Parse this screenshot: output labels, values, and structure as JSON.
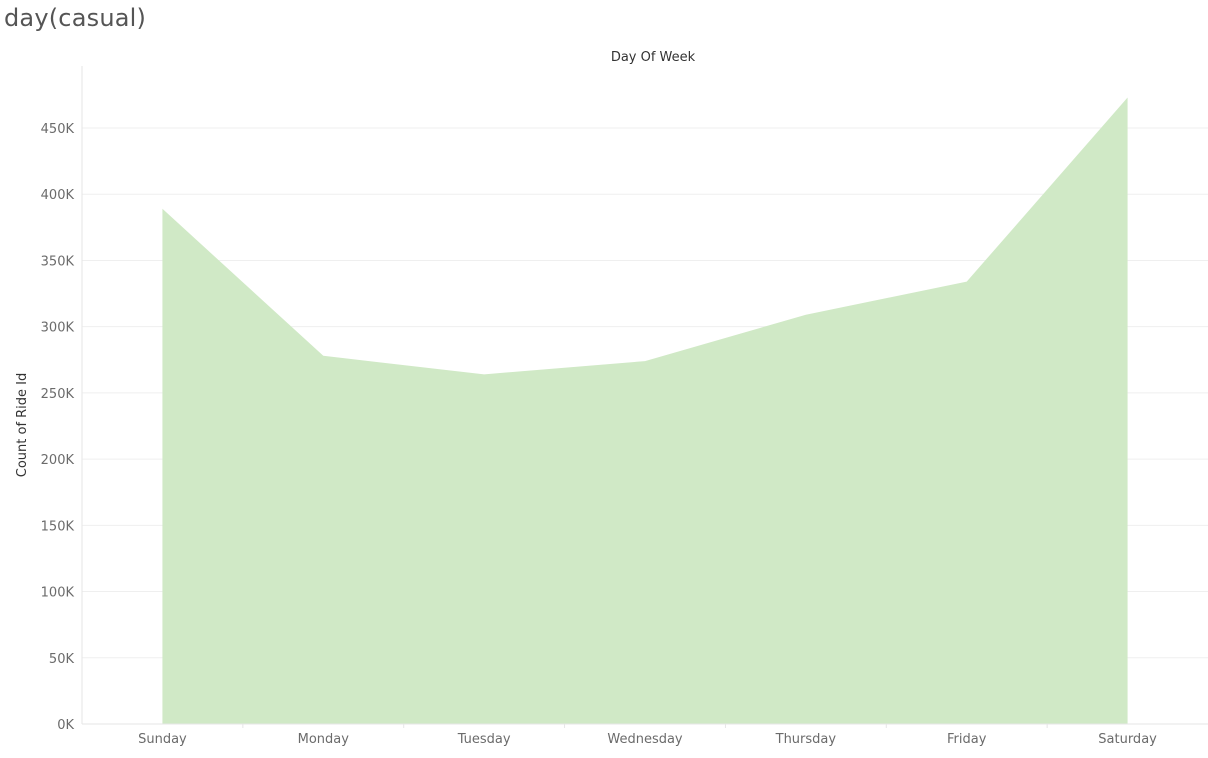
{
  "sheet_title": "day(casual)",
  "chart_data": {
    "type": "area",
    "header": "Day Of Week",
    "xlabel": "",
    "ylabel": "Count of Ride Id",
    "categories": [
      "Sunday",
      "Monday",
      "Tuesday",
      "Wednesday",
      "Thursday",
      "Friday",
      "Saturday"
    ],
    "values": [
      389000,
      278000,
      264000,
      274000,
      309000,
      334000,
      473000
    ],
    "ylim": [
      0,
      480000
    ],
    "yticks": [
      0,
      50000,
      100000,
      150000,
      200000,
      250000,
      300000,
      350000,
      400000,
      450000
    ],
    "ytick_labels": [
      "0K",
      "50K",
      "100K",
      "150K",
      "200K",
      "250K",
      "300K",
      "350K",
      "400K",
      "450K"
    ],
    "grid": true,
    "color": "#d0e9c6"
  }
}
